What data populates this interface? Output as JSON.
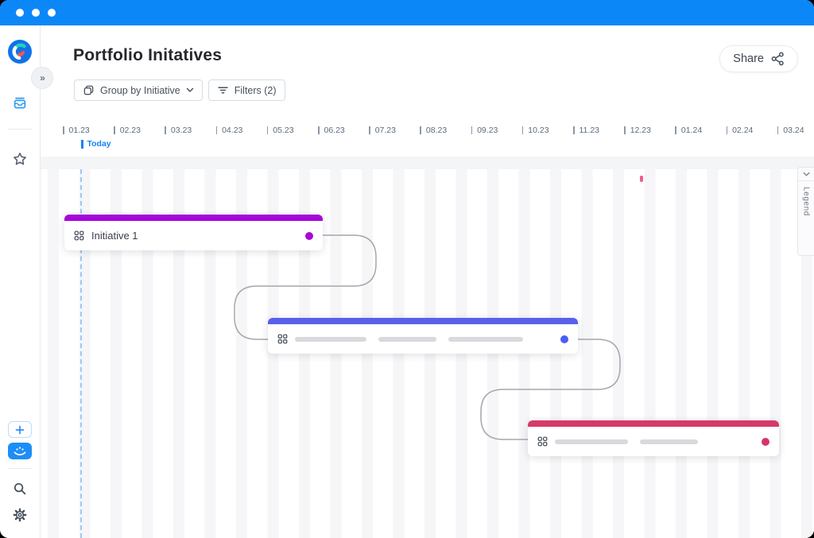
{
  "window": {
    "titlebar_color": "#0c87f8",
    "traffic_dots": 3
  },
  "sidebar": {
    "logo_icon": "app-logo-c",
    "collapse_label": "»",
    "nav_icons": [
      "inbox-icon",
      "star-icon"
    ],
    "bottom_icons": [
      "plus-icon",
      "apps-icon",
      "search-icon",
      "gear-icon"
    ]
  },
  "header": {
    "title": "Portfolio Initatives",
    "share": {
      "label": "Share",
      "icon": "share-icon"
    }
  },
  "toolbar": {
    "group_by": {
      "label": "Group by Initiative",
      "icon": "group-icon",
      "chevron": "chevron-down-icon"
    },
    "filters": {
      "label": "Filters (2)",
      "icon": "filter-icon"
    }
  },
  "timeline": {
    "months": [
      "01.23",
      "02.23",
      "03.23",
      "04.23",
      "05.23",
      "06.23",
      "07.23",
      "08.23",
      "09.23",
      "10.23",
      "11.23",
      "12.23",
      "01.24",
      "02.24",
      "03.24"
    ],
    "today_label": "Today",
    "accent_color": "#1283f2"
  },
  "canvas": {
    "legend": {
      "label": "Legend",
      "icon": "chevron-down-icon"
    },
    "milestone_marker_color": "#f25c8a",
    "connector_color": "#a6a6ab",
    "cards": [
      {
        "title": "Initiative 1",
        "color": "#a408da",
        "dot_color": "#a408da",
        "skeleton_bars": 0
      },
      {
        "title": "",
        "color": "#5a60ea",
        "dot_color": "#4a5ef5",
        "skeleton_bars": 3
      },
      {
        "title": "",
        "color": "#d63a69",
        "dot_color": "#d6356b",
        "skeleton_bars": 2
      }
    ]
  }
}
